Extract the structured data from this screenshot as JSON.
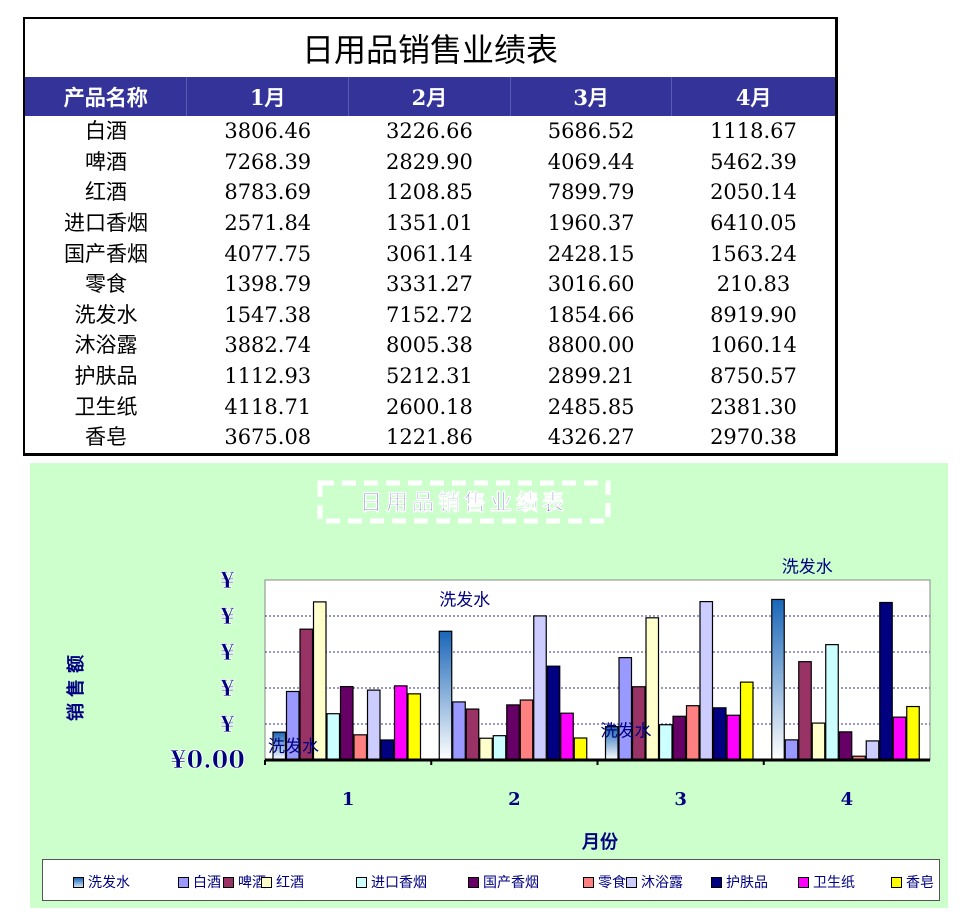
{
  "table": {
    "title": "日用品销售业绩表",
    "headers": [
      "产品名称",
      "1月",
      "2月",
      "3月",
      "4月"
    ],
    "rows": [
      [
        "白酒",
        "3806.46",
        "3226.66",
        "5686.52",
        "1118.67"
      ],
      [
        "啤酒",
        "7268.39",
        "2829.90",
        "4069.44",
        "5462.39"
      ],
      [
        "红酒",
        "8783.69",
        "1208.85",
        "7899.79",
        "2050.14"
      ],
      [
        "进口香烟",
        "2571.84",
        "1351.01",
        "1960.37",
        "6410.05"
      ],
      [
        "国产香烟",
        "4077.75",
        "3061.14",
        "2428.15",
        "1563.24"
      ],
      [
        "零食",
        "1398.79",
        "3331.27",
        "3016.60",
        "210.83"
      ],
      [
        "洗发水",
        "1547.38",
        "7152.72",
        "1854.66",
        "8919.90"
      ],
      [
        "沐浴露",
        "3882.74",
        "8005.38",
        "8800.00",
        "1060.14"
      ],
      [
        "护肤品",
        "1112.93",
        "5212.31",
        "2899.21",
        "8750.57"
      ],
      [
        "卫生纸",
        "4118.71",
        "2600.18",
        "2485.85",
        "2381.30"
      ],
      [
        "香皂",
        "3675.08",
        "1221.86",
        "4326.27",
        "2970.38"
      ]
    ]
  },
  "chart_data": {
    "type": "bar",
    "title": "日用品销售业绩表",
    "xlabel": "月份",
    "ylabel": "销售额",
    "ylim": [
      0,
      10000
    ],
    "ytick_labels": [
      "¥0.00",
      "¥",
      "¥",
      "¥",
      "¥",
      "¥"
    ],
    "categories": [
      "1",
      "2",
      "3",
      "4"
    ],
    "legend_position": "bottom",
    "data_label": "洗发水",
    "series": [
      {
        "name": "洗发水",
        "color": "#2a72c0",
        "values": [
          1547.38,
          7152.72,
          1854.66,
          8919.9
        ]
      },
      {
        "name": "白酒",
        "color": "#9999ff",
        "values": [
          3806.46,
          3226.66,
          5686.52,
          1118.67
        ]
      },
      {
        "name": "啤酒",
        "color": "#993366",
        "values": [
          7268.39,
          2829.9,
          4069.44,
          5462.39
        ]
      },
      {
        "name": "红酒",
        "color": "#ffffcc",
        "values": [
          8783.69,
          1208.85,
          7899.79,
          2050.14
        ]
      },
      {
        "name": "进口香烟",
        "color": "#ccffff",
        "values": [
          2571.84,
          1351.01,
          1960.37,
          6410.05
        ]
      },
      {
        "name": "国产香烟",
        "color": "#660066",
        "values": [
          4077.75,
          3061.14,
          2428.15,
          1563.24
        ]
      },
      {
        "name": "零食",
        "color": "#ff8080",
        "values": [
          1398.79,
          3331.27,
          3016.6,
          210.83
        ]
      },
      {
        "name": "沐浴露",
        "color": "#ccccff",
        "values": [
          3882.74,
          8005.38,
          8800.0,
          1060.14
        ]
      },
      {
        "name": "护肤品",
        "color": "#000080",
        "values": [
          1112.93,
          5212.31,
          2899.21,
          8750.57
        ]
      },
      {
        "name": "卫生纸",
        "color": "#ff00ff",
        "values": [
          4118.71,
          2600.18,
          2485.85,
          2381.3
        ]
      },
      {
        "name": "香皂",
        "color": "#ffff00",
        "values": [
          3675.08,
          1221.86,
          4326.27,
          2970.38
        ]
      }
    ]
  }
}
